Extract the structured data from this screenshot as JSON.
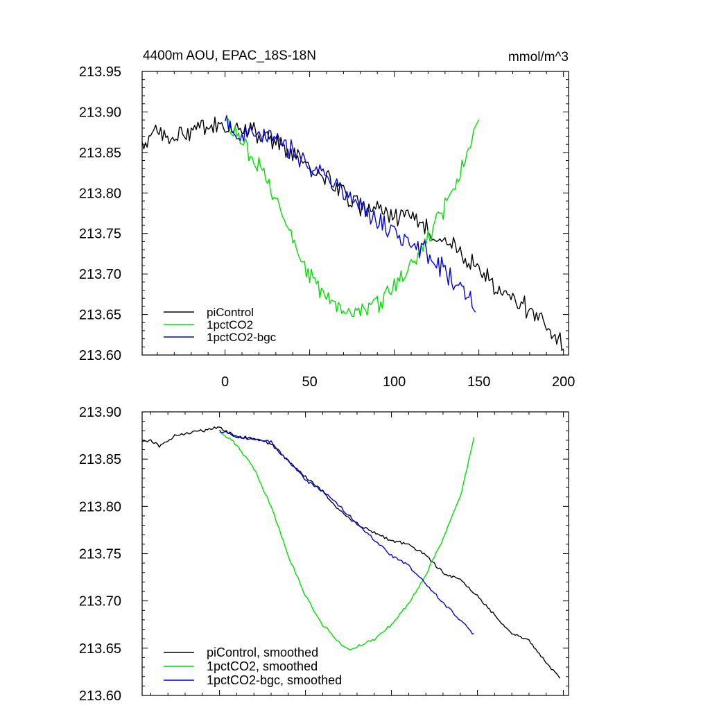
{
  "chart_data": [
    {
      "type": "line",
      "title_left": "4400m AOU, EPAC_18S-18N",
      "title_right": "mmol/m^3",
      "xlabel": "",
      "ylabel": "",
      "xlim": [
        -49,
        203
      ],
      "ylim": [
        213.6,
        213.95
      ],
      "x_ticks": [
        0,
        50,
        100,
        150,
        200
      ],
      "x_tick_labels": [
        "0",
        "50",
        "100",
        "150",
        "200"
      ],
      "y_ticks": [
        213.6,
        213.65,
        213.7,
        213.75,
        213.8,
        213.85,
        213.9,
        213.95
      ],
      "y_tick_labels": [
        "213.60",
        "213.65",
        "213.70",
        "213.75",
        "213.80",
        "213.85",
        "213.90",
        "213.95"
      ],
      "legend_position": "bottom-left",
      "noise": true,
      "series": [
        {
          "name": "piControl",
          "color": "#000000",
          "x": [
            -49,
            -40,
            -30,
            -20,
            -10,
            0,
            10,
            20,
            30,
            40,
            50,
            60,
            70,
            80,
            90,
            100,
            110,
            120,
            130,
            140,
            150,
            160,
            170,
            180,
            190,
            200
          ],
          "y": [
            213.858,
            213.873,
            213.868,
            213.875,
            213.88,
            213.882,
            213.876,
            213.872,
            213.866,
            213.846,
            213.831,
            213.817,
            213.8,
            213.782,
            213.778,
            213.772,
            213.768,
            213.755,
            213.742,
            213.726,
            213.705,
            213.685,
            213.666,
            213.658,
            213.633,
            213.614
          ]
        },
        {
          "name": "1pctCO2",
          "color": "#00e000",
          "x": [
            0,
            10,
            15,
            20,
            25,
            30,
            40,
            50,
            60,
            70,
            80,
            90,
            100,
            110,
            120,
            130,
            140,
            150
          ],
          "y": [
            213.885,
            213.868,
            213.845,
            213.835,
            213.815,
            213.795,
            213.745,
            213.7,
            213.668,
            213.65,
            213.653,
            213.663,
            213.682,
            213.71,
            213.745,
            213.785,
            213.83,
            213.888
          ]
        },
        {
          "name": "1pctCO2-bgc",
          "color": "#0000e0",
          "x": [
            0,
            10,
            20,
            30,
            40,
            50,
            60,
            70,
            80,
            90,
            100,
            110,
            120,
            130,
            140,
            148
          ],
          "y": [
            213.885,
            213.874,
            213.871,
            213.868,
            213.851,
            213.829,
            213.817,
            213.8,
            213.786,
            213.766,
            213.751,
            213.74,
            213.723,
            213.703,
            213.682,
            213.665
          ]
        }
      ]
    },
    {
      "type": "line",
      "xlabel": "",
      "ylabel": "",
      "xlim": [
        -45,
        203
      ],
      "ylim": [
        213.6,
        213.9
      ],
      "x_ticks": [
        0,
        50,
        100,
        150,
        200
      ],
      "x_tick_labels": [],
      "y_ticks": [
        213.6,
        213.65,
        213.7,
        213.75,
        213.8,
        213.85,
        213.9
      ],
      "y_tick_labels": [
        "213.60",
        "213.65",
        "213.70",
        "213.75",
        "213.80",
        "213.85",
        "213.90"
      ],
      "legend_position": "bottom-left",
      "noise": false,
      "series": [
        {
          "name": "piControl, smoothed",
          "color": "#000000",
          "x": [
            -45,
            -40,
            -35,
            -30,
            -25,
            -20,
            -10,
            0,
            5,
            10,
            20,
            30,
            40,
            50,
            60,
            70,
            80,
            90,
            100,
            110,
            120,
            130,
            140,
            150,
            160,
            170,
            180,
            190,
            198
          ],
          "y": [
            213.869,
            213.87,
            213.864,
            213.868,
            213.876,
            213.877,
            213.88,
            213.884,
            213.878,
            213.874,
            213.872,
            213.866,
            213.848,
            213.831,
            213.816,
            213.795,
            213.781,
            213.772,
            213.764,
            213.76,
            213.748,
            213.73,
            213.722,
            213.705,
            213.685,
            213.666,
            213.658,
            213.635,
            213.618
          ]
        },
        {
          "name": "1pctCO2, smoothed",
          "color": "#00e000",
          "x": [
            0,
            10,
            20,
            30,
            40,
            50,
            60,
            70,
            75,
            80,
            85,
            90,
            100,
            110,
            120,
            130,
            140,
            148
          ],
          "y": [
            213.88,
            213.865,
            213.84,
            213.8,
            213.748,
            213.705,
            213.675,
            213.655,
            213.649,
            213.652,
            213.656,
            213.659,
            213.675,
            213.697,
            213.728,
            213.766,
            213.81,
            213.872
          ]
        },
        {
          "name": "1pctCO2-bgc, smoothed",
          "color": "#0000e0",
          "x": [
            0,
            10,
            20,
            30,
            40,
            50,
            60,
            70,
            80,
            90,
            100,
            110,
            120,
            130,
            140,
            148
          ],
          "y": [
            213.88,
            213.874,
            213.871,
            213.868,
            213.848,
            213.828,
            213.816,
            213.8,
            213.782,
            213.765,
            213.748,
            213.737,
            213.718,
            213.698,
            213.68,
            213.664
          ]
        }
      ]
    }
  ]
}
